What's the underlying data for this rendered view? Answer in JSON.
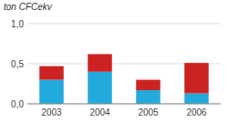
{
  "chart_data": {
    "type": "bar",
    "stacked": true,
    "ylabel": "ton CFCekv",
    "categories": [
      "2003",
      "2004",
      "2005",
      "2006"
    ],
    "series": [
      {
        "color": "#22aadd",
        "values": [
          0.3,
          0.4,
          0.17,
          0.13
        ]
      },
      {
        "color": "#cc2222",
        "values": [
          0.17,
          0.22,
          0.13,
          0.38
        ]
      }
    ],
    "ylim": [
      0,
      1.0
    ],
    "yticks": [
      {
        "value": 0.0,
        "label": "0,0"
      },
      {
        "value": 0.5,
        "label": "0,5"
      },
      {
        "value": 1.0,
        "label": "1,0"
      }
    ],
    "grid": true
  }
}
